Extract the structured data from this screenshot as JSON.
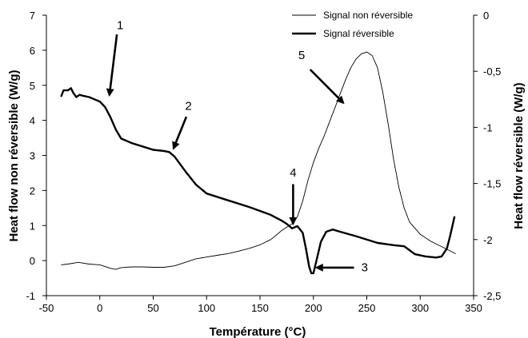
{
  "chart_data": {
    "type": "line",
    "xlabel": "Température (°C)",
    "ylabel_left": "Heat flow non réversible (W/g)",
    "ylabel_right": "Heat flow réversible (W/g)",
    "xlim": [
      -50,
      350
    ],
    "ylim_left": [
      -1,
      7
    ],
    "ylim_right": [
      -2.5,
      0
    ],
    "x_ticks": [
      -50,
      0,
      50,
      100,
      150,
      200,
      250,
      300,
      350
    ],
    "y_left_ticks": [
      -1,
      0,
      1,
      2,
      3,
      4,
      5,
      6,
      7
    ],
    "y_right_ticks": [
      {
        "value": 0,
        "label": "0"
      },
      {
        "value": -0.5,
        "label": "-0,5"
      },
      {
        "value": -1,
        "label": "-1"
      },
      {
        "value": -1.5,
        "label": "-1,5"
      },
      {
        "value": -2,
        "label": "-2"
      },
      {
        "value": -2.5,
        "label": "-2,5"
      }
    ],
    "grid": false,
    "legend_position": "top-right",
    "series": [
      {
        "name": "Signal non réversible",
        "axis": "left",
        "style": "thin",
        "x": [
          -36,
          -30,
          -20,
          -10,
          0,
          10,
          15,
          20,
          30,
          40,
          50,
          60,
          70,
          80,
          90,
          100,
          110,
          120,
          130,
          140,
          150,
          160,
          165,
          170,
          175,
          180,
          185,
          190,
          195,
          200,
          205,
          210,
          215,
          220,
          225,
          230,
          235,
          240,
          245,
          250,
          255,
          260,
          265,
          270,
          275,
          280,
          285,
          290,
          300,
          310,
          320,
          333
        ],
        "y": [
          -0.12,
          -0.1,
          -0.05,
          -0.1,
          -0.12,
          -0.22,
          -0.25,
          -0.2,
          -0.18,
          -0.18,
          -0.19,
          -0.19,
          -0.15,
          -0.05,
          0.05,
          0.1,
          0.15,
          0.2,
          0.27,
          0.35,
          0.45,
          0.6,
          0.72,
          0.85,
          0.95,
          1.05,
          1.25,
          1.7,
          2.3,
          2.8,
          3.2,
          3.55,
          3.95,
          4.35,
          4.75,
          5.15,
          5.5,
          5.75,
          5.9,
          5.95,
          5.85,
          5.5,
          4.8,
          3.9,
          2.9,
          2.1,
          1.5,
          1.1,
          0.75,
          0.55,
          0.4,
          0.2
        ]
      },
      {
        "name": "Signal réversible",
        "axis": "right",
        "style": "thick",
        "x": [
          -36,
          -34,
          -30,
          -27,
          -25,
          -22,
          -19,
          -15,
          -10,
          -5,
          0,
          5,
          10,
          15,
          20,
          30,
          40,
          50,
          60,
          65,
          70,
          80,
          90,
          100,
          120,
          140,
          160,
          170,
          175,
          180,
          185,
          190,
          193,
          196,
          198,
          200,
          203,
          207,
          212,
          218,
          225,
          240,
          260,
          275,
          285,
          295,
          305,
          315,
          320,
          325,
          328,
          332
        ],
        "y": [
          -0.72,
          -0.67,
          -0.67,
          -0.65,
          -0.69,
          -0.73,
          -0.71,
          -0.72,
          -0.73,
          -0.75,
          -0.77,
          -0.82,
          -0.91,
          -1.02,
          -1.1,
          -1.14,
          -1.17,
          -1.2,
          -1.21,
          -1.22,
          -1.26,
          -1.39,
          -1.51,
          -1.59,
          -1.65,
          -1.71,
          -1.78,
          -1.83,
          -1.86,
          -1.9,
          -1.88,
          -1.94,
          -2.08,
          -2.24,
          -2.3,
          -2.3,
          -2.18,
          -2.02,
          -1.93,
          -1.91,
          -1.93,
          -1.97,
          -2.03,
          -2.05,
          -2.06,
          -2.13,
          -2.15,
          -2.16,
          -2.15,
          -2.08,
          -1.97,
          -1.8
        ]
      }
    ],
    "annotations": [
      {
        "label": "1",
        "text_x": 19,
        "text_y": 6.6,
        "arrow_from": [
          16,
          6.45
        ],
        "arrow_to": [
          9,
          4.72
        ]
      },
      {
        "label": "2",
        "text_x": 83,
        "text_y": 4.3,
        "arrow_from": [
          81,
          4.1
        ],
        "arrow_to": [
          69,
          3.2
        ]
      },
      {
        "label": "3",
        "text_x": 248,
        "text_y": -0.3,
        "arrow_from": [
          238,
          -0.2
        ],
        "arrow_to": [
          203,
          -0.2
        ]
      },
      {
        "label": "4",
        "text_x": 181,
        "text_y": 2.4,
        "arrow_from": [
          181,
          2.18
        ],
        "arrow_to": [
          181,
          1.05
        ]
      },
      {
        "label": "5",
        "text_x": 189,
        "text_y": 5.75,
        "arrow_from": [
          197,
          5.45
        ],
        "arrow_to": [
          228,
          4.5
        ]
      }
    ]
  }
}
